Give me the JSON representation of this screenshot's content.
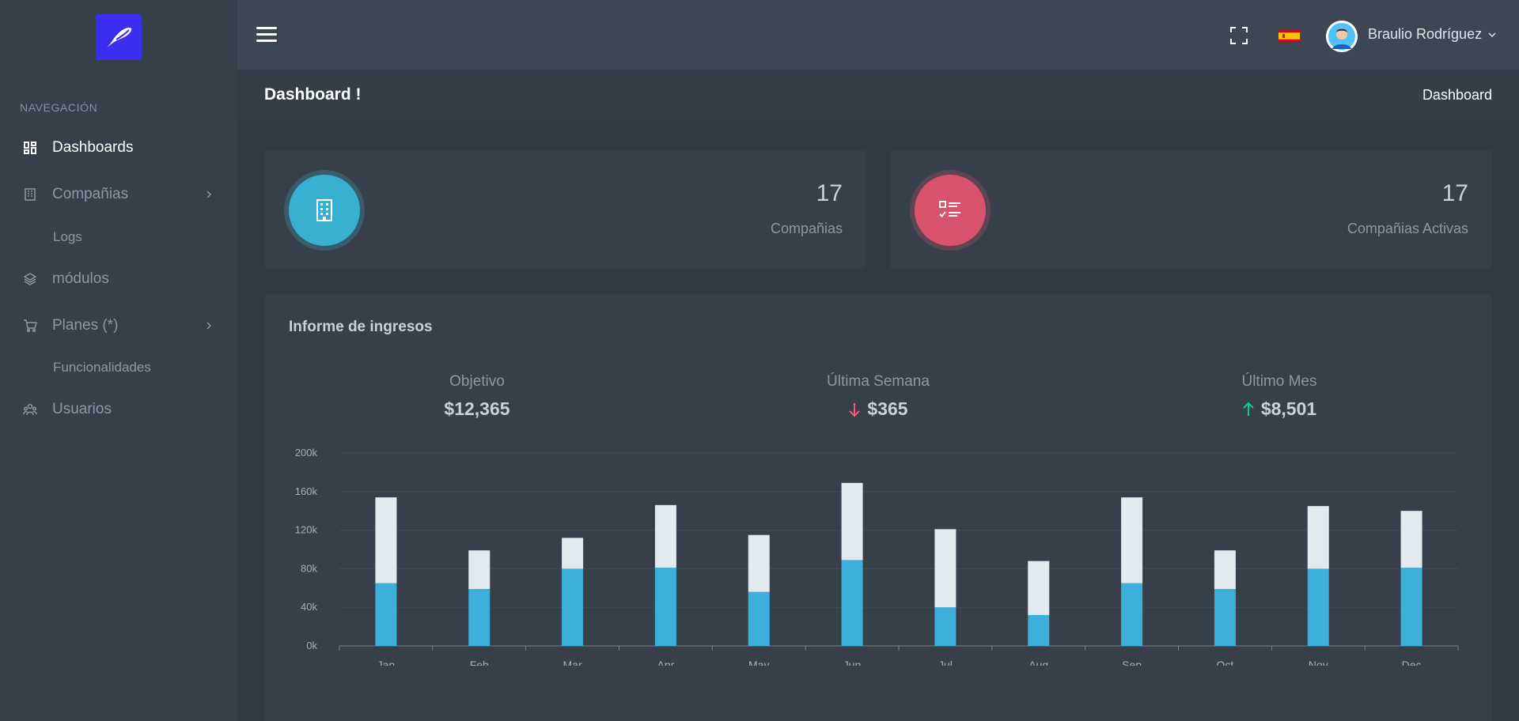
{
  "sidebar": {
    "nav_title": "NAVEGACIÓN",
    "items": [
      {
        "label": "Dashboards"
      },
      {
        "label": "Compañias"
      },
      {
        "label": "Logs"
      },
      {
        "label": "módulos"
      },
      {
        "label": "Planes (*)"
      },
      {
        "label": "Funcionalidades"
      },
      {
        "label": "Usuarios"
      }
    ]
  },
  "topbar": {
    "username": "Braulio Rodríguez"
  },
  "page": {
    "title": "Dashboard !",
    "breadcrumb": "Dashboard"
  },
  "stats": [
    {
      "value": "17",
      "label": "Compañias",
      "color": "#39afd1"
    },
    {
      "value": "17",
      "label": "Compañias Activas",
      "color": "#d9536d"
    }
  ],
  "revenue": {
    "title": "Informe de ingresos",
    "metrics": [
      {
        "label": "Objetivo",
        "value": "$12,365",
        "trend": "none"
      },
      {
        "label": "Última Semana",
        "value": "$365",
        "trend": "down"
      },
      {
        "label": "Último Mes",
        "value": "$8,501",
        "trend": "up"
      }
    ]
  },
  "chart_data": {
    "type": "bar",
    "stacked": true,
    "categories": [
      "Jan",
      "Feb",
      "Mar",
      "Apr",
      "May",
      "Jun",
      "Jul",
      "Aug",
      "Sep",
      "Oct",
      "Nov",
      "Dec"
    ],
    "series": [
      {
        "values": [
          65,
          59,
          80,
          81,
          56,
          89,
          40,
          32,
          65,
          59,
          80,
          81
        ],
        "color": "#3cb0db"
      },
      {
        "values": [
          89,
          40,
          32,
          65,
          59,
          80,
          81,
          56,
          89,
          40,
          65,
          59
        ],
        "color": "#e3eaef"
      }
    ],
    "yticks": [
      "0k",
      "40k",
      "80k",
      "120k",
      "160k",
      "200k"
    ],
    "ylim": [
      0,
      200
    ],
    "grid": true
  }
}
